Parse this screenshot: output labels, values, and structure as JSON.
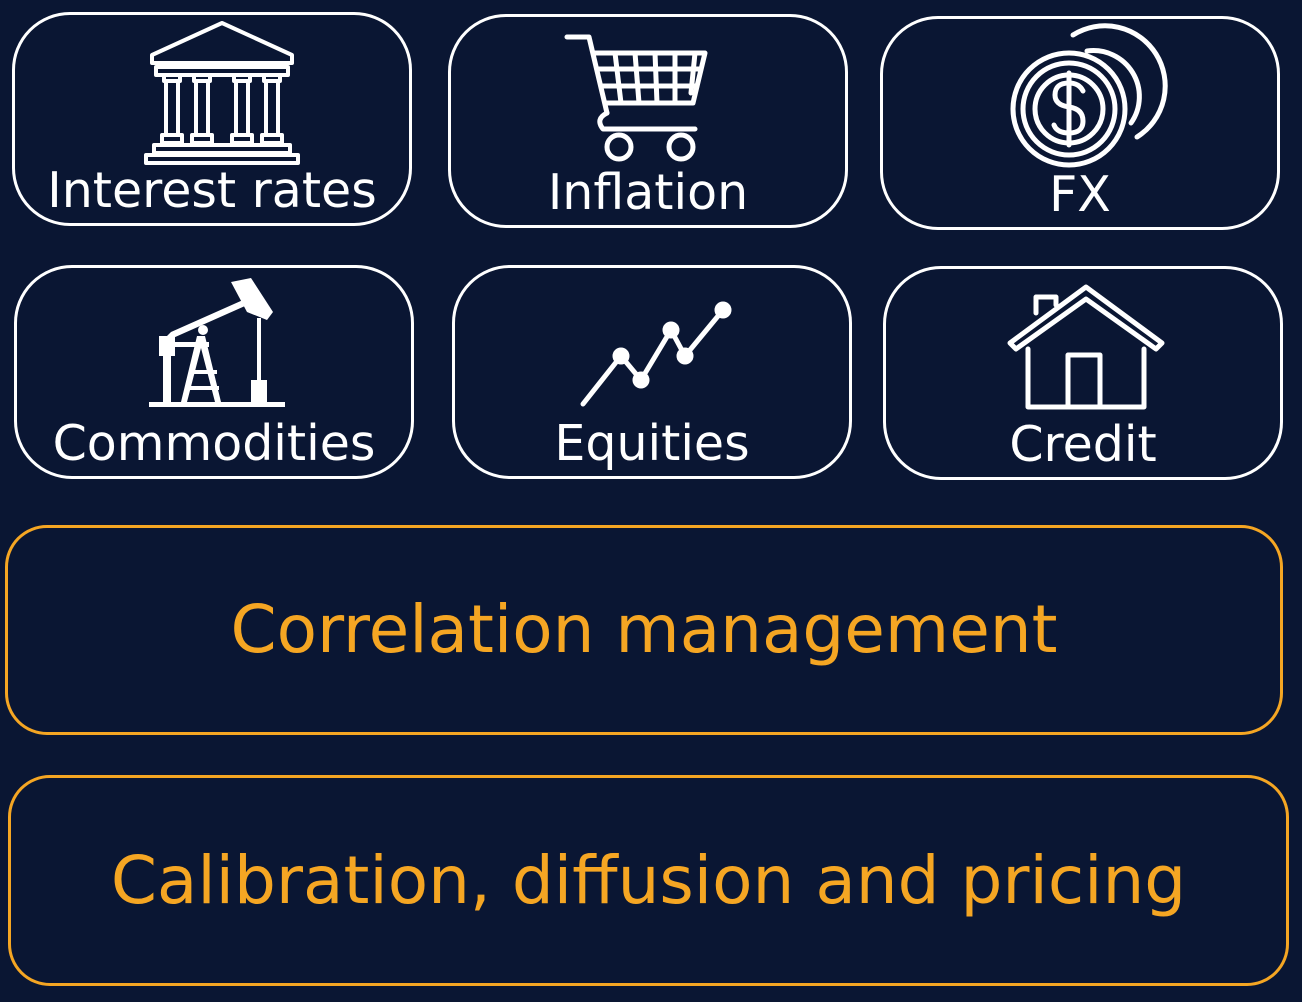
{
  "tiles": [
    {
      "label": "Interest rates",
      "icon": "bank-building-icon"
    },
    {
      "label": "Inflation",
      "icon": "shopping-cart-icon"
    },
    {
      "label": "FX",
      "icon": "dollar-coins-icon"
    },
    {
      "label": "Commodities",
      "icon": "oil-pump-icon"
    },
    {
      "label": "Equities",
      "icon": "trend-line-icon"
    },
    {
      "label": "Credit",
      "icon": "house-icon"
    }
  ],
  "layers": {
    "correlation": "Correlation management",
    "calibration": "Calibration, diffusion and pricing"
  },
  "colors": {
    "background": "#0a1633",
    "tile_border": "#ffffff",
    "accent": "#f5a623"
  }
}
